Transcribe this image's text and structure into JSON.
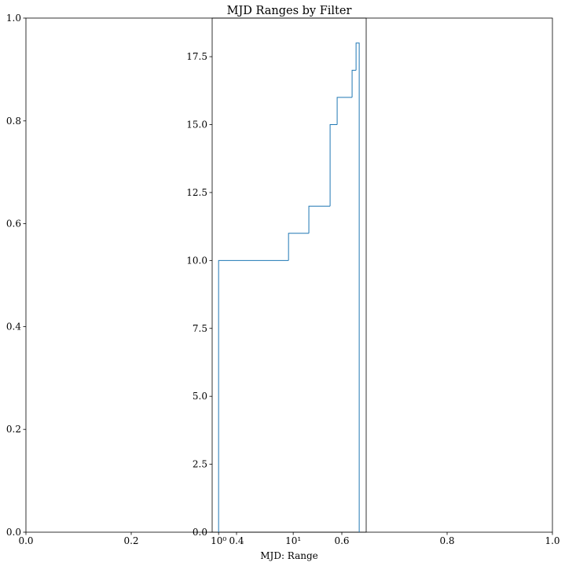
{
  "chart_data": [
    {
      "type": "empty",
      "xlim": [
        0,
        1
      ],
      "ylim": [
        0,
        1
      ],
      "xticks": [
        {
          "value": 0,
          "label": "0.0"
        },
        0.2,
        0.4,
        0.6,
        0.8,
        {
          "value": 1,
          "label": "1.0"
        }
      ],
      "yticks": [
        {
          "value": 0,
          "label": "0.0"
        },
        0.2,
        0.4,
        0.6,
        0.8,
        {
          "value": 1,
          "label": "1.0"
        }
      ]
    },
    {
      "type": "histogram",
      "histtype": "step",
      "title": "MJD Ranges by Filter",
      "x_label": "MJD: Range",
      "xscale": "log",
      "color": "#1f77b4",
      "bins": [
        1,
        8.65,
        16.2,
        31.2,
        38.8,
        61.5,
        69.5,
        76.6
      ],
      "values": [
        10,
        11,
        12,
        15,
        16,
        17,
        18
      ],
      "xlim": [
        0.82,
        95
      ],
      "ylim": [
        0,
        18.92
      ],
      "xticks": [
        {
          "value": 1,
          "label": "10⁰"
        },
        {
          "value": 10,
          "label": "10¹"
        }
      ],
      "yticks": [
        {
          "value": 0,
          "label": "0.0"
        },
        2.5,
        {
          "value": 5,
          "label": "5.0"
        },
        7.5,
        {
          "value": 10,
          "label": "10.0"
        },
        12.5,
        {
          "value": 15,
          "label": "15.0"
        },
        17.5
      ]
    }
  ]
}
